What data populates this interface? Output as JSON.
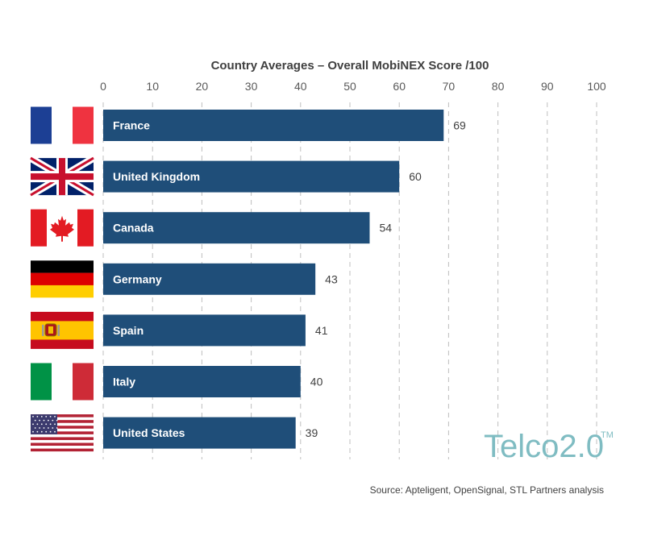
{
  "chart_data": {
    "type": "bar",
    "orientation": "horizontal",
    "title": "Country Averages – Overall MobiNEX Score /100",
    "categories": [
      "France",
      "United Kingdom",
      "Canada",
      "Germany",
      "Spain",
      "Italy",
      "United States"
    ],
    "values": [
      69,
      60,
      54,
      43,
      41,
      40,
      39
    ],
    "xlim": [
      0,
      100
    ],
    "ticks": [
      0,
      10,
      20,
      30,
      40,
      50,
      60,
      70,
      80,
      90,
      100
    ],
    "axis_position": "top",
    "grid": true,
    "legend": "none",
    "bar_color": "#1f4e79",
    "flags": [
      "france-flag-icon",
      "uk-flag-icon",
      "canada-flag-icon",
      "germany-flag-icon",
      "spain-flag-icon",
      "italy-flag-icon",
      "usa-flag-icon"
    ]
  },
  "logo": {
    "text": "Telco2.0",
    "tm": "TM",
    "color": "#7fbcc2"
  },
  "source": "Source: Apteligent, OpenSignal, STL Partners analysis"
}
